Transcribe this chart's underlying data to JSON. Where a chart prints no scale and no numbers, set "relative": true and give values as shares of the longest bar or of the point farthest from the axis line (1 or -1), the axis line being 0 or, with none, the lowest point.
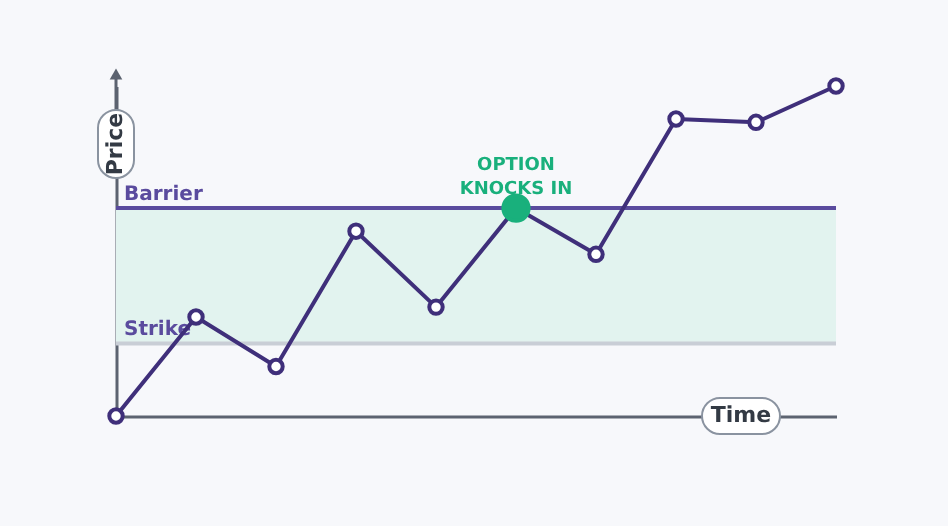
{
  "chart_data": {
    "type": "line",
    "relative": true,
    "xlabel": "Time",
    "ylabel": "Price",
    "categories": [
      null,
      null,
      null,
      null,
      null,
      null,
      null,
      null,
      null,
      null
    ],
    "series": [
      {
        "color": "#3f2f7a",
        "values": [
          0,
          0.3,
          0.15,
          0.56,
          0.33,
          0.63,
          0.49,
          0.9,
          0.89,
          1
        ],
        "colors": [
          "#3f2f7a",
          "#3f2f7a",
          "#3f2f7a",
          "#3f2f7a",
          "#3f2f7a",
          "#19b07c",
          "#3f2f7a",
          "#3f2f7a",
          "#3f2f7a",
          "#3f2f7a"
        ]
      }
    ],
    "marker": "circle",
    "ref_lines": [
      {
        "axis": "y",
        "value": 0.63,
        "label": "Barrier",
        "color": "#5a4b9e"
      },
      {
        "axis": "y",
        "value": 0.22,
        "label": "Strike",
        "color": "#c9ced6"
      }
    ],
    "bands": [
      {
        "axis": "y",
        "from": 0.22,
        "to": 0.63,
        "color": "#e2f3ef"
      }
    ],
    "annotations": [
      {
        "text": "OPTION\nKNOCKS IN",
        "y": 0.63
      }
    ],
    "tick_labels": false,
    "grid": false
  }
}
